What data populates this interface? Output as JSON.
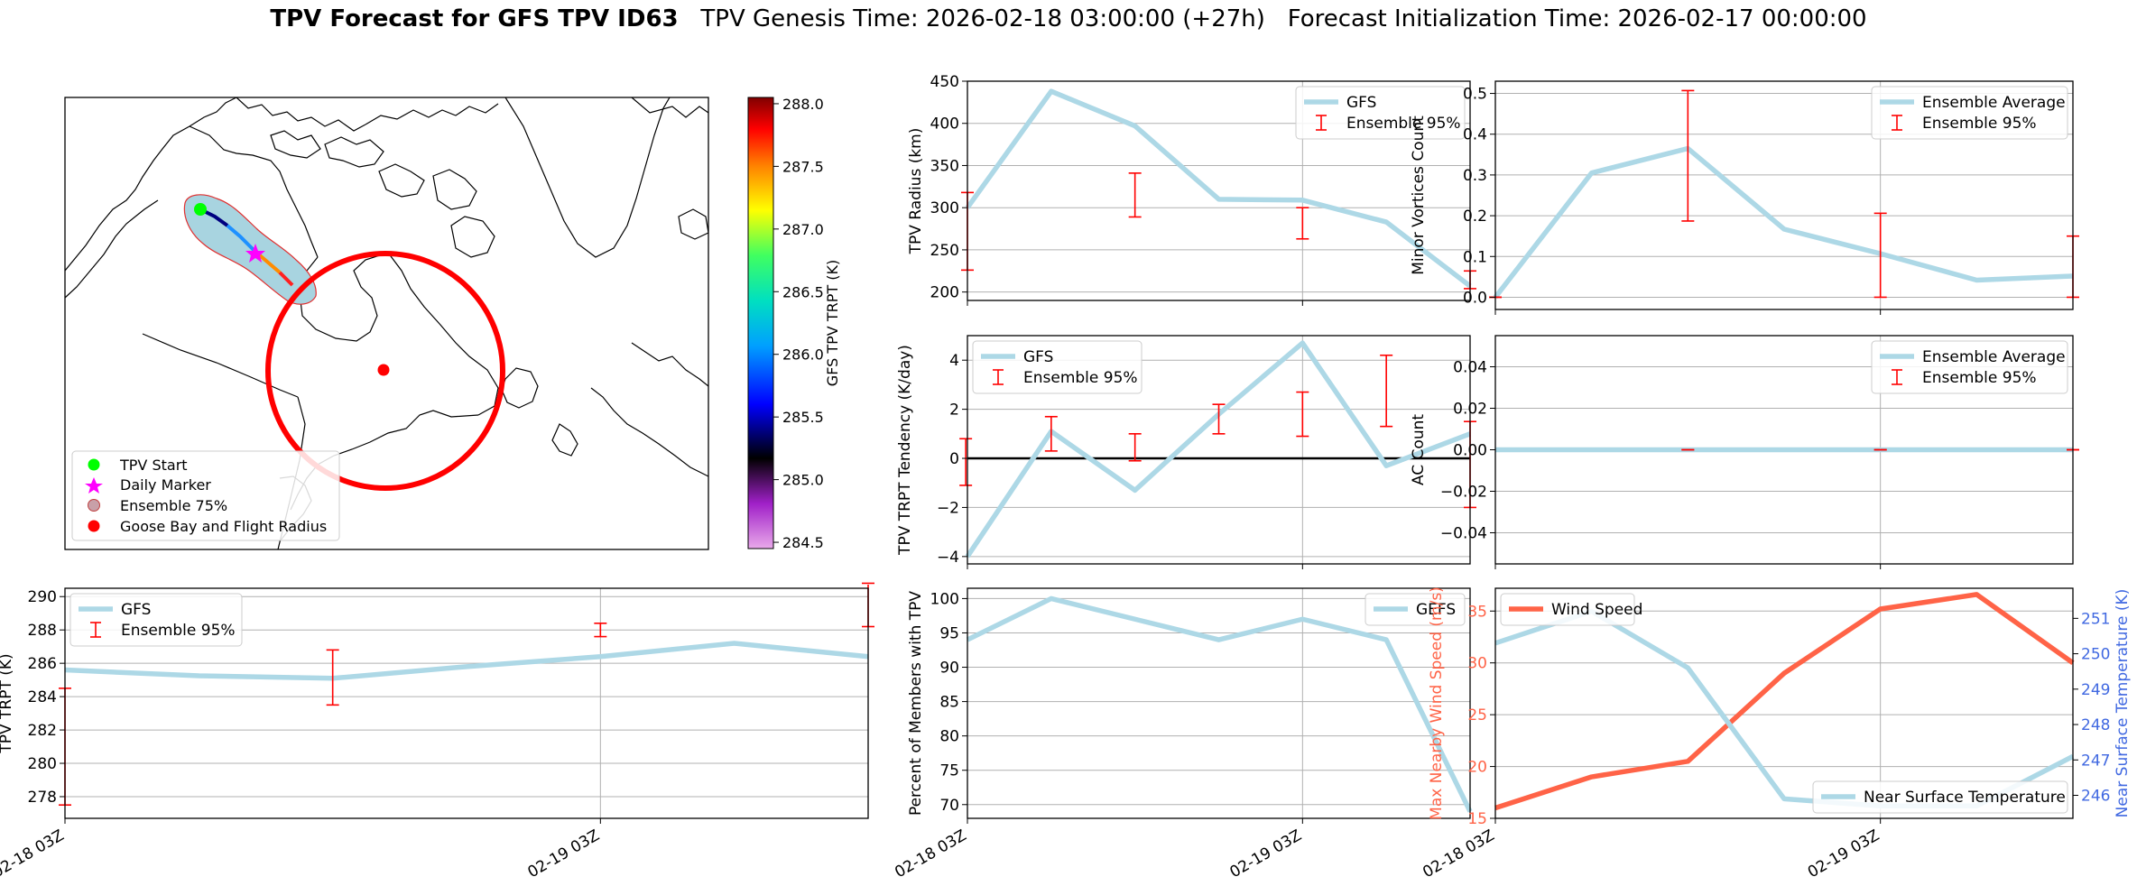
{
  "title": {
    "bold": "TPV Forecast for GFS TPV ID63",
    "rest": "   TPV Genesis Time: 2026-02-18 03:00:00 (+27h)   Forecast Initialization Time: 2026-02-17 00:00:00"
  },
  "colors": {
    "gfs_line": "#add8e6",
    "error_bar": "#ff0000",
    "wind_line": "#ff6347",
    "temp_axis": "#4169e1",
    "flight_radius": "#ff0000",
    "tpv_start": "#00ff00",
    "daily_marker": "#ff00ff"
  },
  "map": {
    "colorbar_label": "GFS TPV TRPT (K)",
    "colorbar_ticks": [
      284.5,
      285.0,
      285.5,
      286.0,
      286.5,
      287.0,
      287.5,
      288.0
    ],
    "colorbar_range": [
      284.45,
      288.05
    ],
    "legend": [
      "TPV Start",
      "Daily Marker",
      "Ensemble 75%",
      "Goose Bay and Flight Radius"
    ]
  },
  "chart_data": [
    {
      "id": "radius",
      "type": "line",
      "ylabel": "TPV Radius (km)",
      "ylim": [
        190,
        450
      ],
      "yticks": [
        200,
        250,
        300,
        350,
        400,
        450
      ],
      "xlim": [
        0,
        6
      ],
      "grid": true,
      "legend_position": "upper right",
      "series": [
        {
          "name": "GFS",
          "x": [
            0,
            1,
            2,
            3,
            4,
            5,
            6
          ],
          "values": [
            300,
            438,
            397,
            310,
            309,
            283,
            207
          ]
        }
      ],
      "error_bars": {
        "name": "Ensemble 95%",
        "items": [
          {
            "x": 0,
            "low": 226,
            "high": 318
          },
          {
            "x": 2,
            "low": 289,
            "high": 341
          },
          {
            "x": 4,
            "low": 263,
            "high": 300
          },
          {
            "x": 6,
            "low": 204,
            "high": 225
          }
        ]
      }
    },
    {
      "id": "minor",
      "type": "line",
      "ylabel": "Minor Vortices Count",
      "ylim": [
        -0.03,
        0.53
      ],
      "yticks": [
        0.0,
        0.1,
        0.2,
        0.3,
        0.4,
        0.5
      ],
      "xlim": [
        0,
        6
      ],
      "grid": true,
      "legend_position": "upper right",
      "series": [
        {
          "name": "Ensemble Average",
          "x": [
            0,
            1,
            2,
            3,
            4,
            5,
            6
          ],
          "values": [
            0.0,
            0.305,
            0.365,
            0.167,
            0.107,
            0.042,
            0.052
          ]
        }
      ],
      "error_bars": {
        "name": "Ensemble 95%",
        "items": [
          {
            "x": 0,
            "low": 0.0,
            "high": 0.0
          },
          {
            "x": 2,
            "low": 0.187,
            "high": 0.507
          },
          {
            "x": 4,
            "low": 0.0,
            "high": 0.206
          },
          {
            "x": 6,
            "low": 0.0,
            "high": 0.15
          }
        ]
      }
    },
    {
      "id": "tendency",
      "type": "line",
      "ylabel": "TPV TRPT Tendency (K/day)",
      "ylim": [
        -4.3,
        5.0
      ],
      "yticks": [
        -4,
        -2,
        0,
        2,
        4
      ],
      "xlim": [
        0,
        6
      ],
      "grid": true,
      "zero_line": true,
      "legend_position": "upper left",
      "series": [
        {
          "name": "GFS",
          "x": [
            0,
            1,
            2,
            3,
            4,
            5,
            6
          ],
          "values": [
            -4.0,
            1.1,
            -1.3,
            1.8,
            4.7,
            -0.3,
            1.0
          ]
        }
      ],
      "error_bars": {
        "name": "Ensemble 95%",
        "items": [
          {
            "x": -0.02,
            "low": -1.1,
            "high": 0.8
          },
          {
            "x": 1,
            "low": 0.3,
            "high": 1.7
          },
          {
            "x": 2,
            "low": -0.1,
            "high": 1.0
          },
          {
            "x": 3,
            "low": 1.0,
            "high": 2.2
          },
          {
            "x": 4,
            "low": 0.9,
            "high": 2.7
          },
          {
            "x": 5,
            "low": 1.3,
            "high": 4.2
          },
          {
            "x": 6,
            "low": -2.0,
            "high": 1.5
          }
        ]
      }
    },
    {
      "id": "ac",
      "type": "line",
      "ylabel": "AC Count",
      "ylim": [
        -0.055,
        0.055
      ],
      "yticks": [
        -0.04,
        -0.02,
        0.0,
        0.02,
        0.04
      ],
      "xlim": [
        0,
        6
      ],
      "grid": true,
      "legend_position": "upper right",
      "series": [
        {
          "name": "Ensemble Average",
          "x": [
            0,
            1,
            2,
            3,
            4,
            5,
            6
          ],
          "values": [
            0,
            0,
            0,
            0,
            0,
            0,
            0
          ]
        }
      ],
      "error_bars": {
        "name": "Ensemble 95%",
        "items": [
          {
            "x": 2,
            "low": 0,
            "high": 0
          },
          {
            "x": 4,
            "low": 0,
            "high": 0
          },
          {
            "x": 6,
            "low": 0,
            "high": 0
          }
        ]
      }
    },
    {
      "id": "trpt",
      "type": "line",
      "ylabel": "TPV TRPT (K)",
      "ylim": [
        276.7,
        290.5
      ],
      "yticks": [
        278,
        280,
        282,
        284,
        286,
        288,
        290
      ],
      "xlim": [
        0,
        6
      ],
      "xticks": [
        {
          "x": 0,
          "label": "02-18 03Z"
        },
        {
          "x": 4,
          "label": "02-19 03Z"
        }
      ],
      "grid": true,
      "legend_position": "upper left",
      "series": [
        {
          "name": "GFS",
          "x": [
            0,
            1,
            2,
            3,
            4,
            5,
            6
          ],
          "values": [
            285.6,
            285.25,
            285.1,
            285.8,
            286.4,
            287.2,
            286.4
          ]
        }
      ],
      "error_bars": {
        "name": "Ensemble 95%",
        "items": [
          {
            "x": 0,
            "low": 277.5,
            "high": 284.5
          },
          {
            "x": 2,
            "low": 283.5,
            "high": 286.8
          },
          {
            "x": 4,
            "low": 287.6,
            "high": 288.4
          },
          {
            "x": 6,
            "low": 288.2,
            "high": 290.8
          }
        ]
      }
    },
    {
      "id": "percent",
      "type": "line",
      "ylabel": "Percent of Members with TPV",
      "ylim": [
        68,
        101.5
      ],
      "yticks": [
        70,
        75,
        80,
        85,
        90,
        95,
        100
      ],
      "xlim": [
        0,
        6
      ],
      "xticks": [
        {
          "x": 0,
          "label": "02-18 03Z"
        },
        {
          "x": 4,
          "label": "02-19 03Z"
        }
      ],
      "grid": true,
      "legend_position": "upper right",
      "series": [
        {
          "name": "GEFS",
          "x": [
            0,
            1,
            2,
            3,
            4,
            5,
            6
          ],
          "values": [
            94,
            100,
            97,
            94,
            97,
            94,
            69
          ]
        }
      ]
    },
    {
      "id": "wind_temp",
      "type": "line",
      "ylabel": "Max Nearby Wind Speed (m/s)",
      "ylabel_right": "Near Surface Temperature (K)",
      "ylim": [
        15,
        37.2
      ],
      "yticks": [
        15,
        20,
        25,
        30,
        35
      ],
      "ylim_right": [
        245.35,
        251.85
      ],
      "yticks_right": [
        246,
        247,
        248,
        249,
        250,
        251
      ],
      "xlim": [
        0,
        6
      ],
      "xticks": [
        {
          "x": 0,
          "label": "02-18 03Z"
        },
        {
          "x": 4,
          "label": "02-19 03Z"
        }
      ],
      "grid": true,
      "legend_position": "upper left / lower right",
      "series": [
        {
          "name": "Wind Speed",
          "axis": "left",
          "x": [
            0,
            1,
            2,
            3,
            4,
            5,
            6
          ],
          "values": [
            16,
            19,
            20.5,
            29,
            35.2,
            36.6,
            30
          ]
        },
        {
          "name": "Near Surface Temperature",
          "axis": "right",
          "x": [
            0,
            1,
            2,
            3,
            4,
            5,
            6
          ],
          "values": [
            250.3,
            251.2,
            249.6,
            245.9,
            245.7,
            245.7,
            247.1
          ]
        }
      ]
    }
  ]
}
